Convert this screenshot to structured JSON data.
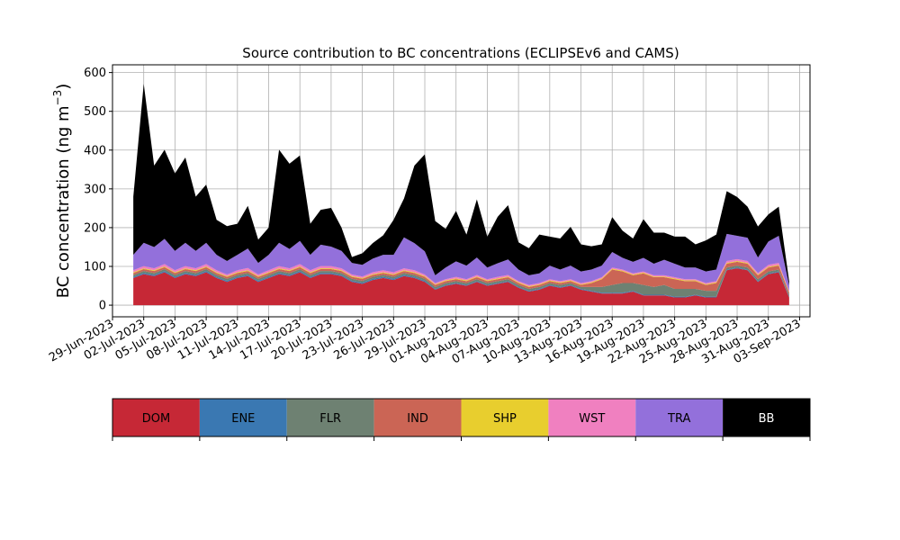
{
  "chart_data": {
    "type": "area",
    "stacked": true,
    "title": "Source contribution to BC concentrations (ECLIPSEv6 and CAMS)",
    "ylabel": "BC concentration (ng m",
    "ylabel_sup": "−3",
    "ylabel_close": ")",
    "ylim": [
      -30,
      620
    ],
    "xlim": [
      "2023-06-29",
      "2023-09-04"
    ],
    "yticks": [
      0,
      100,
      200,
      300,
      400,
      500,
      600
    ],
    "xticks": [
      "29-Jun-2023",
      "02-Jul-2023",
      "05-Jul-2023",
      "08-Jul-2023",
      "11-Jul-2023",
      "14-Jul-2023",
      "17-Jul-2023",
      "20-Jul-2023",
      "23-Jul-2023",
      "26-Jul-2023",
      "29-Jul-2023",
      "01-Aug-2023",
      "04-Aug-2023",
      "07-Aug-2023",
      "10-Aug-2023",
      "13-Aug-2023",
      "16-Aug-2023",
      "19-Aug-2023",
      "22-Aug-2023",
      "25-Aug-2023",
      "28-Aug-2023",
      "31-Aug-2023",
      "03-Sep-2023"
    ],
    "grid": true,
    "dates": [
      "2023-07-01",
      "2023-07-02",
      "2023-07-03",
      "2023-07-04",
      "2023-07-05",
      "2023-07-06",
      "2023-07-07",
      "2023-07-08",
      "2023-07-09",
      "2023-07-10",
      "2023-07-11",
      "2023-07-12",
      "2023-07-13",
      "2023-07-14",
      "2023-07-15",
      "2023-07-16",
      "2023-07-17",
      "2023-07-18",
      "2023-07-19",
      "2023-07-20",
      "2023-07-21",
      "2023-07-22",
      "2023-07-23",
      "2023-07-24",
      "2023-07-25",
      "2023-07-26",
      "2023-07-27",
      "2023-07-28",
      "2023-07-29",
      "2023-07-30",
      "2023-07-31",
      "2023-08-01",
      "2023-08-02",
      "2023-08-03",
      "2023-08-04",
      "2023-08-05",
      "2023-08-06",
      "2023-08-07",
      "2023-08-08",
      "2023-08-09",
      "2023-08-10",
      "2023-08-11",
      "2023-08-12",
      "2023-08-13",
      "2023-08-14",
      "2023-08-15",
      "2023-08-16",
      "2023-08-17",
      "2023-08-18",
      "2023-08-19",
      "2023-08-20",
      "2023-08-21",
      "2023-08-22",
      "2023-08-23",
      "2023-08-24",
      "2023-08-25",
      "2023-08-26",
      "2023-08-27",
      "2023-08-28",
      "2023-08-29",
      "2023-08-30",
      "2023-08-31",
      "2023-09-01",
      "2023-09-02"
    ],
    "series": [
      {
        "name": "DOM",
        "color": "#c62836",
        "values": [
          70,
          80,
          75,
          85,
          70,
          80,
          75,
          85,
          70,
          60,
          70,
          75,
          60,
          70,
          80,
          75,
          85,
          70,
          80,
          80,
          75,
          60,
          55,
          65,
          70,
          65,
          75,
          70,
          60,
          40,
          50,
          55,
          50,
          60,
          50,
          55,
          60,
          45,
          35,
          40,
          50,
          45,
          50,
          40,
          35,
          30,
          30,
          30,
          35,
          25,
          25,
          25,
          20,
          20,
          25,
          20,
          20,
          90,
          95,
          90,
          60,
          80,
          85,
          20
        ]
      },
      {
        "name": "ENE",
        "color": "#3a78b2",
        "values": [
          3,
          3,
          3,
          3,
          3,
          3,
          3,
          3,
          3,
          3,
          3,
          3,
          3,
          3,
          3,
          3,
          3,
          3,
          3,
          3,
          3,
          3,
          3,
          3,
          3,
          3,
          3,
          3,
          3,
          2,
          2,
          2,
          2,
          2,
          2,
          2,
          2,
          2,
          2,
          2,
          2,
          2,
          2,
          2,
          2,
          2,
          2,
          2,
          2,
          2,
          2,
          2,
          2,
          2,
          2,
          2,
          2,
          2,
          2,
          2,
          2,
          2,
          2,
          2
        ]
      },
      {
        "name": "FLR",
        "color": "#6e8172",
        "values": [
          5,
          5,
          5,
          5,
          5,
          5,
          5,
          5,
          5,
          5,
          5,
          5,
          5,
          5,
          5,
          5,
          5,
          5,
          5,
          5,
          5,
          5,
          5,
          5,
          5,
          5,
          5,
          5,
          5,
          5,
          5,
          5,
          5,
          5,
          5,
          5,
          5,
          5,
          5,
          5,
          5,
          5,
          5,
          5,
          10,
          15,
          20,
          25,
          20,
          25,
          20,
          25,
          20,
          20,
          15,
          15,
          15,
          5,
          5,
          5,
          5,
          5,
          5,
          5
        ]
      },
      {
        "name": "IND",
        "color": "#cb6555",
        "values": [
          5,
          5,
          5,
          5,
          5,
          5,
          5,
          5,
          5,
          5,
          5,
          5,
          5,
          5,
          5,
          5,
          5,
          5,
          5,
          5,
          5,
          5,
          5,
          5,
          5,
          5,
          5,
          5,
          5,
          5,
          5,
          5,
          5,
          5,
          5,
          5,
          5,
          5,
          5,
          5,
          5,
          5,
          5,
          5,
          10,
          20,
          40,
          30,
          20,
          30,
          25,
          20,
          25,
          20,
          20,
          15,
          20,
          10,
          10,
          10,
          10,
          10,
          10,
          5
        ]
      },
      {
        "name": "SHP",
        "color": "#e8ce2e",
        "values": [
          2,
          2,
          2,
          2,
          2,
          2,
          2,
          2,
          2,
          2,
          2,
          2,
          2,
          2,
          2,
          2,
          2,
          2,
          2,
          2,
          2,
          2,
          2,
          2,
          2,
          2,
          2,
          2,
          2,
          2,
          2,
          2,
          2,
          2,
          2,
          2,
          2,
          2,
          2,
          2,
          2,
          2,
          2,
          2,
          2,
          2,
          2,
          2,
          2,
          2,
          2,
          2,
          2,
          2,
          2,
          2,
          2,
          2,
          2,
          2,
          2,
          2,
          2,
          2
        ]
      },
      {
        "name": "WST",
        "color": "#f080c0",
        "values": [
          5,
          6,
          5,
          6,
          5,
          6,
          5,
          6,
          5,
          4,
          5,
          6,
          4,
          5,
          6,
          5,
          6,
          5,
          6,
          6,
          5,
          4,
          4,
          5,
          5,
          5,
          5,
          5,
          4,
          3,
          3,
          4,
          3,
          4,
          3,
          4,
          4,
          3,
          3,
          3,
          3,
          3,
          3,
          3,
          3,
          3,
          3,
          3,
          3,
          3,
          3,
          3,
          3,
          3,
          3,
          3,
          3,
          5,
          5,
          5,
          4,
          5,
          5,
          2
        ]
      },
      {
        "name": "TRA",
        "color": "#9370db",
        "values": [
          40,
          60,
          55,
          65,
          50,
          60,
          45,
          55,
          40,
          35,
          40,
          50,
          30,
          40,
          60,
          50,
          60,
          40,
          55,
          50,
          45,
          30,
          30,
          35,
          40,
          45,
          80,
          70,
          60,
          20,
          30,
          40,
          35,
          45,
          30,
          35,
          40,
          30,
          25,
          25,
          35,
          30,
          35,
          30,
          30,
          30,
          40,
          30,
          30,
          35,
          30,
          40,
          35,
          30,
          30,
          30,
          30,
          70,
          60,
          60,
          40,
          60,
          70,
          15
        ]
      },
      {
        "name": "BB",
        "color": "#000000",
        "values": [
          150,
          410,
          210,
          230,
          200,
          220,
          140,
          150,
          90,
          90,
          80,
          110,
          60,
          70,
          240,
          220,
          220,
          80,
          90,
          100,
          60,
          15,
          30,
          40,
          50,
          90,
          100,
          200,
          250,
          140,
          100,
          130,
          80,
          150,
          80,
          120,
          140,
          70,
          70,
          100,
          75,
          80,
          100,
          70,
          60,
          55,
          90,
          70,
          60,
          100,
          80,
          70,
          70,
          80,
          60,
          80,
          90,
          110,
          100,
          80,
          80,
          70,
          75,
          10
        ]
      }
    ]
  }
}
